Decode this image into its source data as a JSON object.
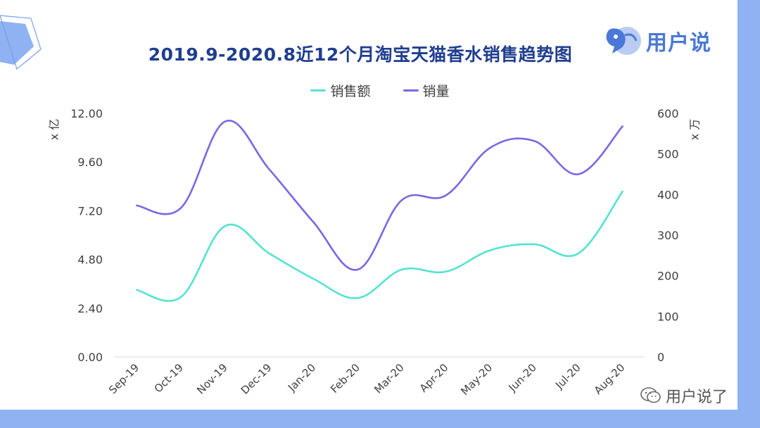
{
  "title": "2019.9-2020.8近12个月淘宝天猫香水销售趋势图",
  "logo_text": "用户说",
  "watermark_text": "用户说了",
  "colors": {
    "sales": "#54e3d1",
    "volume": "#7b67e3",
    "frame": "#8fb2f3",
    "title": "#1f3e8f"
  },
  "units": {
    "left": "x 亿",
    "right": "x 万"
  },
  "chart_data": {
    "type": "line",
    "categories": [
      "Sep-19",
      "Oct-19",
      "Nov-19",
      "Dec-19",
      "Jan-20",
      "Feb-20",
      "Mar-20",
      "Apr-20",
      "May-20",
      "Jun-20",
      "Jul-20",
      "Aug-20"
    ],
    "series": [
      {
        "name": "销售额",
        "axis": "left",
        "values": [
          3.3,
          2.95,
          6.45,
          5.1,
          3.85,
          2.9,
          4.3,
          4.2,
          5.25,
          5.55,
          5.1,
          8.15
        ]
      },
      {
        "name": "销量",
        "axis": "right",
        "values": [
          373,
          367,
          580,
          462,
          332,
          215,
          386,
          398,
          515,
          532,
          450,
          568
        ]
      }
    ],
    "y_left": {
      "min": 0,
      "max": 12,
      "ticks": [
        "0.00",
        "2.40",
        "4.80",
        "7.20",
        "9.60",
        "12.00"
      ]
    },
    "y_right": {
      "min": 0,
      "max": 600,
      "ticks": [
        "0",
        "100",
        "200",
        "300",
        "400",
        "500",
        "600"
      ]
    },
    "legend_position": "top-center",
    "grid": false
  }
}
